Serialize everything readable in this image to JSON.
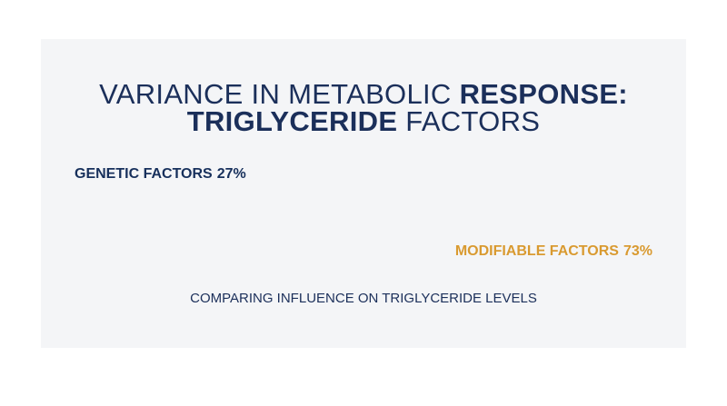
{
  "chart_data": {
    "type": "stacked-bar",
    "title": [
      {
        "text": "VARIANCE IN METABOLIC",
        "weight": "normal"
      },
      {
        "text": "RESPONSE:",
        "weight": "bold"
      },
      {
        "text": "TRIGLYCERIDE",
        "weight": "bold"
      },
      {
        "text": "FACTORS",
        "weight": "normal"
      }
    ],
    "xlim": [
      0,
      100
    ],
    "series": [
      {
        "name": "GENETIC FACTORS",
        "color": "#17305c",
        "values": [
          27
        ],
        "value_labels": [
          "27%"
        ]
      },
      {
        "name": "MODIFIABLE FACTORS",
        "color": "#d99a30",
        "values": [
          73
        ],
        "value_labels": [
          "73%"
        ]
      }
    ],
    "caption": "COMPARING INFLUENCE ON TRIGLYCERIDE LEVELS"
  }
}
